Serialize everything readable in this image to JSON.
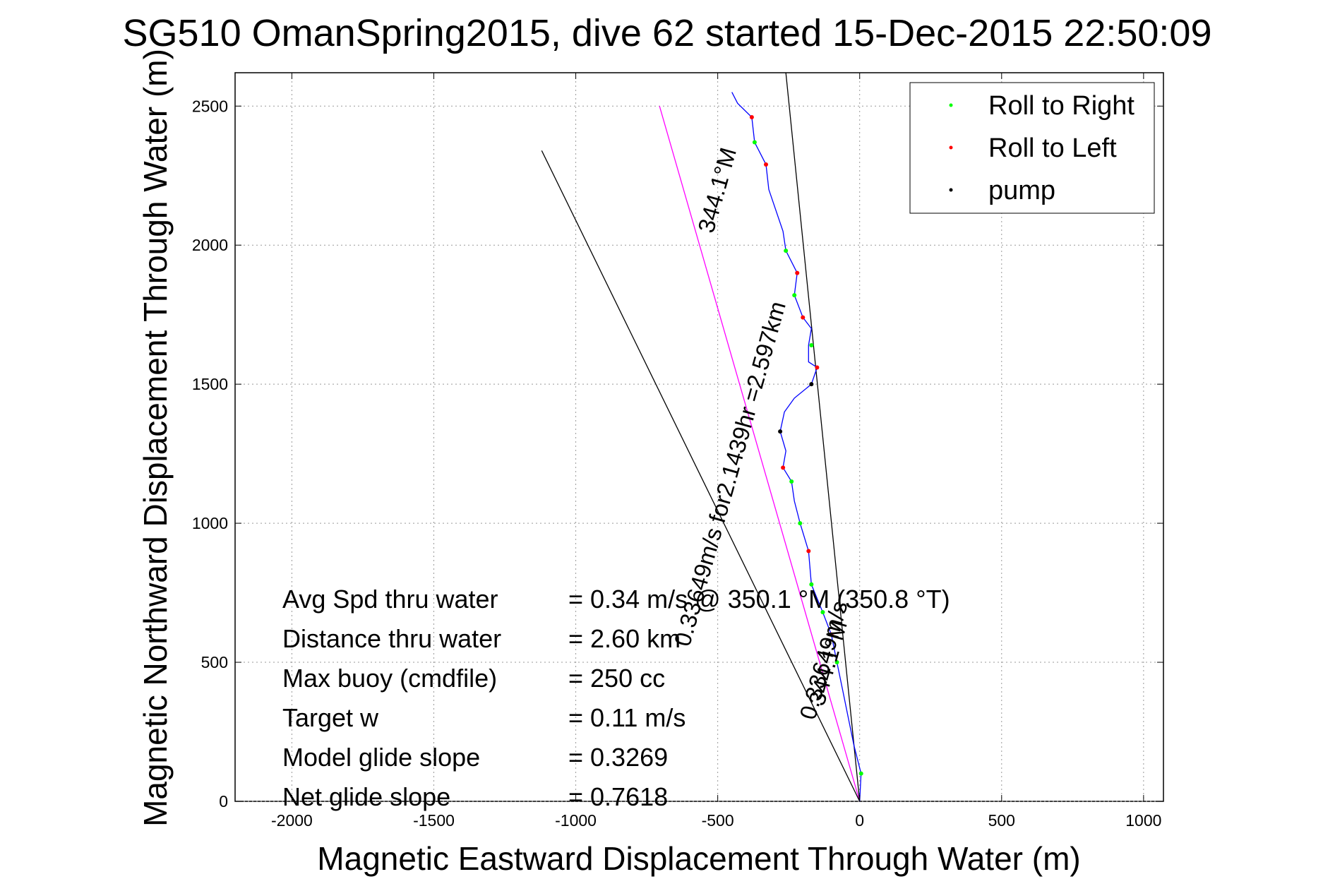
{
  "chart_data": {
    "type": "line",
    "title": "SG510 OmanSpring2015, dive 62 started 15-Dec-2015 22:50:09",
    "xlabel": "Magnetic Eastward Displacement Through Water (m)",
    "ylabel": "Magnetic Northward Displacement Through Water (m)",
    "xlim": [
      -2200,
      1070
    ],
    "ylim": [
      0,
      2620
    ],
    "xticks": [
      -2000,
      -1500,
      -1000,
      -500,
      0,
      500,
      1000
    ],
    "yticks": [
      0,
      500,
      1000,
      1500,
      2000,
      2500
    ],
    "xtick_labels": [
      "-2000",
      "-1500",
      "-1000",
      "-500",
      "0",
      "500",
      "1000"
    ],
    "ytick_labels": [
      "0",
      "500",
      "1000",
      "1500",
      "2000",
      "2500"
    ],
    "grid": true,
    "legend_position": "top-right",
    "legend": [
      {
        "label": "Roll to Right",
        "color": "#00ff00"
      },
      {
        "label": "Roll to Left",
        "color": "#ff0000"
      },
      {
        "label": "pump",
        "color": "#000000"
      }
    ],
    "track": {
      "color": "#0000ff",
      "points": [
        [
          0,
          0
        ],
        [
          5,
          100
        ],
        [
          -20,
          200
        ],
        [
          -40,
          300
        ],
        [
          -60,
          400
        ],
        [
          -80,
          500
        ],
        [
          -100,
          600
        ],
        [
          -130,
          680
        ],
        [
          -170,
          780
        ],
        [
          -180,
          900
        ],
        [
          -210,
          1000
        ],
        [
          -230,
          1080
        ],
        [
          -240,
          1150
        ],
        [
          -270,
          1200
        ],
        [
          -260,
          1260
        ],
        [
          -280,
          1330
        ],
        [
          -265,
          1400
        ],
        [
          -230,
          1450
        ],
        [
          -170,
          1500
        ],
        [
          -150,
          1560
        ],
        [
          -180,
          1580
        ],
        [
          -180,
          1640
        ],
        [
          -170,
          1700
        ],
        [
          -200,
          1740
        ],
        [
          -230,
          1820
        ],
        [
          -220,
          1900
        ],
        [
          -260,
          1980
        ],
        [
          -270,
          2050
        ],
        [
          -320,
          2200
        ],
        [
          -330,
          2290
        ],
        [
          -370,
          2370
        ],
        [
          -380,
          2460
        ],
        [
          -430,
          2510
        ],
        [
          -450,
          2550
        ]
      ],
      "roll_right": [
        [
          5,
          100
        ],
        [
          -80,
          500
        ],
        [
          -130,
          680
        ],
        [
          -170,
          780
        ],
        [
          -210,
          1000
        ],
        [
          -240,
          1150
        ],
        [
          -170,
          1640
        ],
        [
          -230,
          1820
        ],
        [
          -260,
          1980
        ],
        [
          -370,
          2370
        ]
      ],
      "roll_left": [
        [
          -100,
          600
        ],
        [
          -180,
          900
        ],
        [
          -270,
          1200
        ],
        [
          -150,
          1560
        ],
        [
          -200,
          1740
        ],
        [
          -220,
          1900
        ],
        [
          -330,
          2290
        ],
        [
          -380,
          2460
        ]
      ],
      "pump": [
        [
          -280,
          1330
        ],
        [
          -170,
          1500
        ]
      ]
    },
    "reference_lines": [
      {
        "name": "magenta",
        "color": "#ff00ff",
        "from": [
          0,
          0
        ],
        "to": [
          -705,
          2500
        ]
      },
      {
        "name": "black-left",
        "color": "#000000",
        "from": [
          0,
          0
        ],
        "to": [
          -1120,
          2340
        ]
      },
      {
        "name": "black-right",
        "color": "#000000",
        "from": [
          0,
          0
        ],
        "to": [
          -260,
          2620
        ]
      }
    ],
    "annotations": [
      {
        "text": "344.1°M",
        "x": -475,
        "y": 2190,
        "angle": -74.3
      },
      {
        "text": "0.33649m/s for2.1439hr =2.597km",
        "x": -430,
        "y": 1170,
        "angle": -74.3
      },
      {
        "text": "344.1°M",
        "x": -85,
        "y": 490,
        "angle": -74.3
      },
      {
        "text": "0.33649m/s",
        "x": -100,
        "y": 500,
        "angle": -74.3
      }
    ],
    "stats": [
      {
        "label": "Avg Spd thru water",
        "value": "=  0.34 m/s @ 350.1 °M (350.8 °T)"
      },
      {
        "label": "Distance thru water",
        "value": "=  2.60 km"
      },
      {
        "label": "Max buoy (cmdfile)",
        "value": "= 250 cc"
      },
      {
        "label": "Target w",
        "value": "= 0.11 m/s"
      },
      {
        "label": "Model glide slope",
        "value": "= 0.3269"
      },
      {
        "label": "Net glide slope",
        "value": "= 0.7618"
      }
    ]
  }
}
